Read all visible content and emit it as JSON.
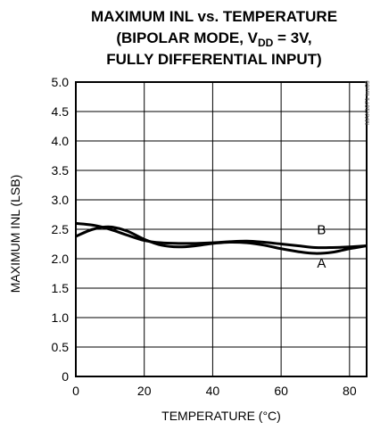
{
  "title_lines": [
    "MAXIMUM INL vs. TEMPERATURE",
    "(BIPOLAR MODE, V",
    "DD",
    " = 3V,",
    "FULLY DIFFERENTIAL INPUT)"
  ],
  "side_code": "MAX1071 toc09",
  "chart_data": {
    "type": "line",
    "xlabel": "TEMPERATURE (°C)",
    "ylabel": "MAXIMUM INL (LSB)",
    "xlim": [
      0,
      85
    ],
    "ylim": [
      0,
      5.0
    ],
    "x_ticks": [
      0,
      20,
      40,
      60,
      80
    ],
    "y_ticks": [
      0,
      0.5,
      1.0,
      1.5,
      2.0,
      2.5,
      3.0,
      3.5,
      4.0,
      4.5,
      5.0
    ],
    "y_tick_labels": [
      "0",
      "0.5",
      "1.0",
      "1.5",
      "2.0",
      "2.5",
      "3.0",
      "3.5",
      "4.0",
      "4.5",
      "5.0"
    ],
    "grid": true,
    "series": [
      {
        "name": "A",
        "x": [
          0,
          5,
          10,
          15,
          20,
          25,
          30,
          35,
          40,
          45,
          50,
          55,
          60,
          65,
          70,
          75,
          80,
          85
        ],
        "y": [
          2.38,
          2.5,
          2.54,
          2.47,
          2.33,
          2.23,
          2.2,
          2.22,
          2.26,
          2.28,
          2.27,
          2.23,
          2.17,
          2.12,
          2.09,
          2.11,
          2.17,
          2.22
        ]
      },
      {
        "name": "B",
        "x": [
          0,
          5,
          10,
          15,
          20,
          25,
          30,
          35,
          40,
          45,
          50,
          55,
          60,
          65,
          70,
          75,
          80,
          85
        ],
        "y": [
          2.6,
          2.57,
          2.5,
          2.4,
          2.31,
          2.27,
          2.26,
          2.26,
          2.27,
          2.29,
          2.3,
          2.28,
          2.25,
          2.22,
          2.19,
          2.19,
          2.2,
          2.22
        ]
      }
    ],
    "curve_label_positions": [
      {
        "name": "A",
        "x": 70.5,
        "y": 1.85
      },
      {
        "name": "B",
        "x": 70.5,
        "y": 2.42
      }
    ]
  }
}
